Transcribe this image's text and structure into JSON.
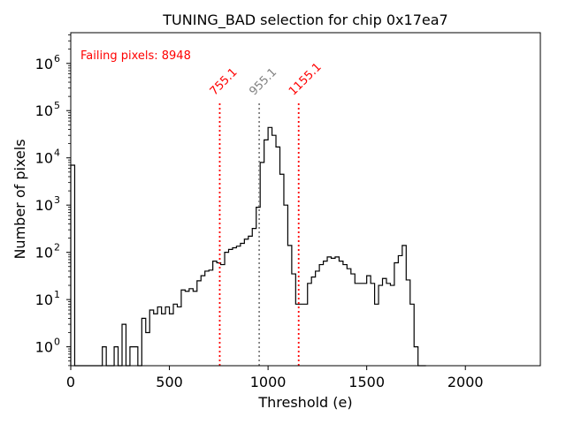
{
  "chart_data": {
    "type": "histogram",
    "title": "TUNING_BAD selection for chip 0x17ea7",
    "xlabel": "Threshold (e)",
    "ylabel": "Number of pixels",
    "xlim": [
      0,
      2380
    ],
    "ylog_range": [
      -0.4,
      6.65
    ],
    "yscale": "log",
    "x_ticks": [
      0,
      500,
      1000,
      1500,
      2000
    ],
    "x_tick_labels": [
      "0",
      "500",
      "1000",
      "1500",
      "2000"
    ],
    "y_ticks": [
      0,
      1,
      2,
      3,
      4,
      5,
      6
    ],
    "y_tick_labels": [
      {
        "base": "10",
        "exp": "0"
      },
      {
        "base": "10",
        "exp": "1"
      },
      {
        "base": "10",
        "exp": "2"
      },
      {
        "base": "10",
        "exp": "3"
      },
      {
        "base": "10",
        "exp": "4"
      },
      {
        "base": "10",
        "exp": "5"
      },
      {
        "base": "10",
        "exp": "6"
      }
    ],
    "bin_width": 20,
    "bins": [
      [
        0,
        7000
      ],
      [
        20,
        0
      ],
      [
        40,
        0
      ],
      [
        60,
        0
      ],
      [
        80,
        0
      ],
      [
        100,
        0
      ],
      [
        120,
        0
      ],
      [
        140,
        0
      ],
      [
        160,
        1
      ],
      [
        180,
        0
      ],
      [
        200,
        0
      ],
      [
        220,
        1
      ],
      [
        240,
        0
      ],
      [
        260,
        3
      ],
      [
        280,
        0
      ],
      [
        300,
        1
      ],
      [
        320,
        1
      ],
      [
        340,
        0
      ],
      [
        360,
        4
      ],
      [
        380,
        2
      ],
      [
        400,
        6
      ],
      [
        420,
        5
      ],
      [
        440,
        7
      ],
      [
        460,
        5
      ],
      [
        480,
        7
      ],
      [
        500,
        5
      ],
      [
        520,
        8
      ],
      [
        540,
        7
      ],
      [
        560,
        16
      ],
      [
        580,
        15
      ],
      [
        600,
        17
      ],
      [
        620,
        15
      ],
      [
        640,
        25
      ],
      [
        660,
        32
      ],
      [
        680,
        40
      ],
      [
        700,
        42
      ],
      [
        720,
        65
      ],
      [
        740,
        60
      ],
      [
        760,
        55
      ],
      [
        780,
        100
      ],
      [
        800,
        115
      ],
      [
        820,
        125
      ],
      [
        840,
        135
      ],
      [
        860,
        155
      ],
      [
        880,
        190
      ],
      [
        900,
        220
      ],
      [
        920,
        320
      ],
      [
        940,
        900
      ],
      [
        960,
        8000
      ],
      [
        980,
        24000
      ],
      [
        1000,
        44000
      ],
      [
        1020,
        30000
      ],
      [
        1040,
        17000
      ],
      [
        1060,
        4500
      ],
      [
        1080,
        1000
      ],
      [
        1100,
        140
      ],
      [
        1120,
        35
      ],
      [
        1140,
        8
      ],
      [
        1160,
        8
      ],
      [
        1180,
        8
      ],
      [
        1200,
        22
      ],
      [
        1220,
        30
      ],
      [
        1240,
        40
      ],
      [
        1260,
        55
      ],
      [
        1280,
        65
      ],
      [
        1300,
        80
      ],
      [
        1320,
        75
      ],
      [
        1340,
        80
      ],
      [
        1360,
        65
      ],
      [
        1380,
        55
      ],
      [
        1400,
        45
      ],
      [
        1420,
        35
      ],
      [
        1440,
        22
      ],
      [
        1460,
        22
      ],
      [
        1480,
        22
      ],
      [
        1500,
        32
      ],
      [
        1520,
        22
      ],
      [
        1540,
        8
      ],
      [
        1560,
        20
      ],
      [
        1580,
        28
      ],
      [
        1600,
        22
      ],
      [
        1620,
        20
      ],
      [
        1640,
        60
      ],
      [
        1660,
        85
      ],
      [
        1680,
        140
      ],
      [
        1700,
        26
      ],
      [
        1720,
        8
      ],
      [
        1740,
        1
      ],
      [
        1760,
        0
      ],
      [
        1780,
        0
      ]
    ],
    "vlines": [
      {
        "x": 755.1,
        "label": "755.1",
        "color": "#ff0000"
      },
      {
        "x": 955.1,
        "label": "955.1",
        "color": "#808080"
      },
      {
        "x": 1155.1,
        "label": "1155.1",
        "color": "#ff0000"
      }
    ],
    "annotation": "Failing pixels: 8948",
    "annotation_color": "#ff0000",
    "line_color": "#000000"
  }
}
